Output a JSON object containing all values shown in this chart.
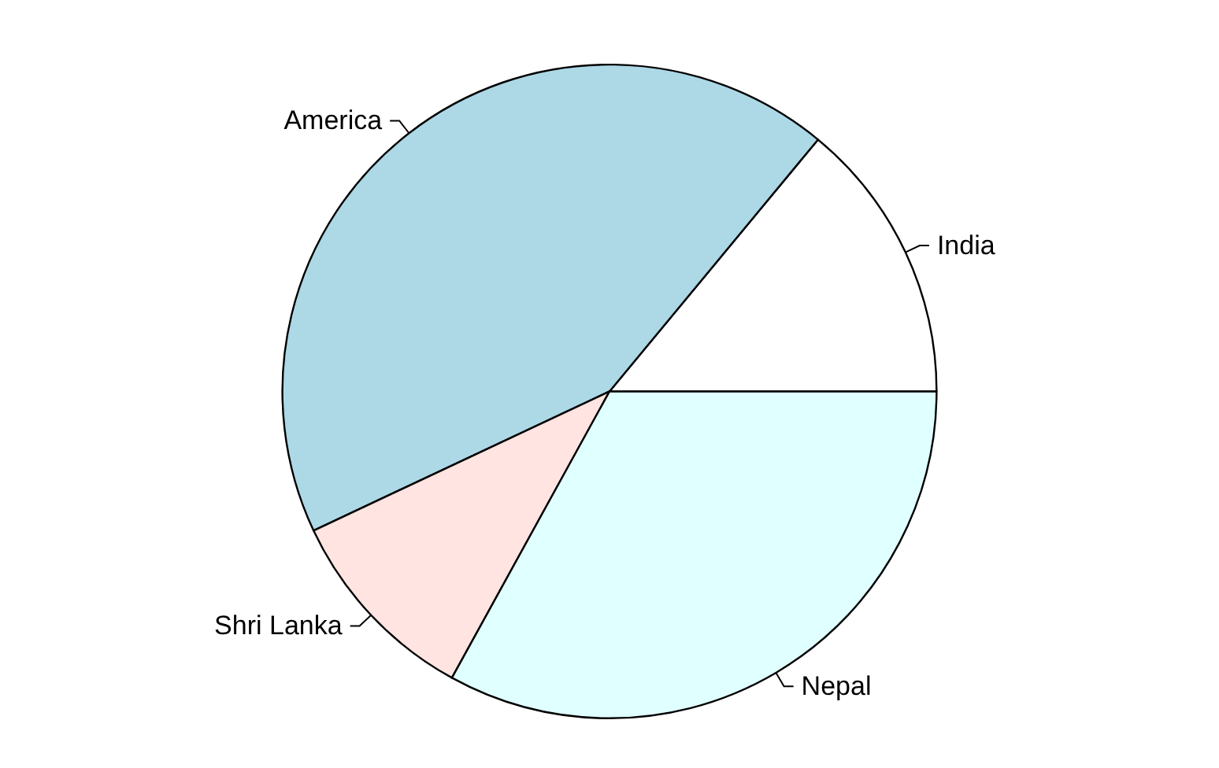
{
  "chart_data": {
    "type": "pie",
    "categories": [
      "India",
      "America",
      "Shri Lanka",
      "Nepal"
    ],
    "values": [
      14,
      43,
      10,
      33
    ],
    "colors": [
      "#ffffff",
      "#add8e6",
      "#ffe4e1",
      "#e0ffff"
    ]
  }
}
